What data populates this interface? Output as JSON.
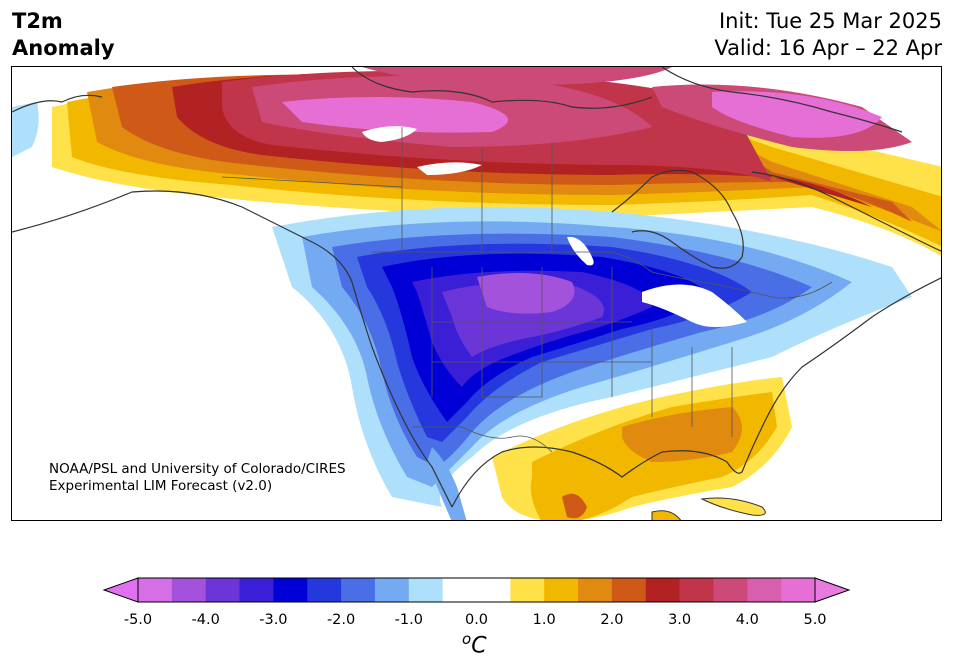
{
  "header": {
    "title_line1": "T2m",
    "title_line2": "Anomaly",
    "init": "Init: Tue 25 Mar 2025",
    "valid": "Valid: 16 Apr – 22 Apr"
  },
  "credit": {
    "line1": "NOAA/PSL and University of Colorado/CIRES",
    "line2": "Experimental LIM Forecast (v2.0)"
  },
  "colorbar": {
    "ticks": [
      "-5.0",
      "-4.0",
      "-3.0",
      "-2.0",
      "-1.0",
      "0.0",
      "1.0",
      "2.0",
      "3.0",
      "4.0",
      "5.0"
    ],
    "units_symbol": "o",
    "units_letter": "C",
    "colors": [
      "#d66fe6",
      "#a352dc",
      "#6b35d8",
      "#3b1fd6",
      "#0000d6",
      "#2538dd",
      "#4a6ee6",
      "#74aaf2",
      "#aee0fb",
      "#ffffff",
      "#ffffff",
      "#ffe14a",
      "#f2b800",
      "#e08a10",
      "#cf5a18",
      "#b22222",
      "#c0354a",
      "#cc4a78",
      "#d85fae",
      "#e66fd6"
    ],
    "under_color": "#e070f0",
    "over_color": "#e87ae0"
  }
}
